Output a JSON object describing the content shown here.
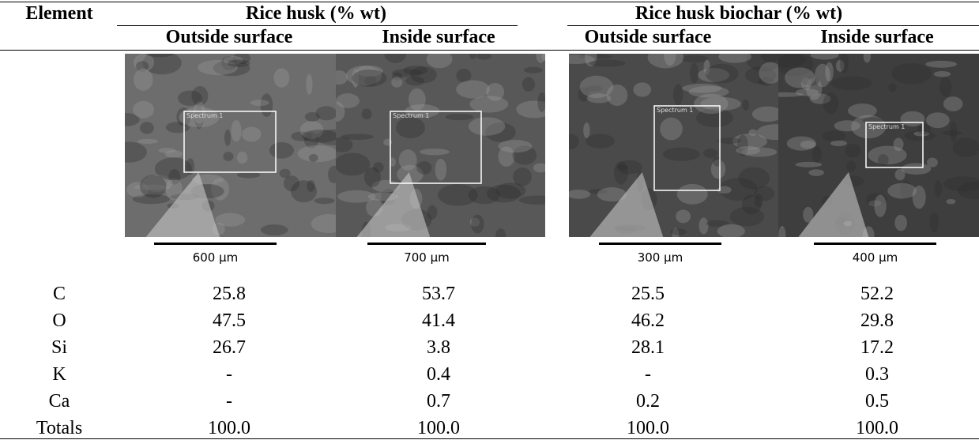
{
  "header": {
    "element": "Element",
    "groups": [
      {
        "title": "Rice husk (% wt)",
        "columns": [
          "Outside surface",
          "Inside surface"
        ]
      },
      {
        "title": "Rice husk biochar (% wt)",
        "columns": [
          "Outside surface",
          "Inside surface"
        ]
      }
    ]
  },
  "images": [
    {
      "label": "Spectrum 1",
      "scale": "600 µm"
    },
    {
      "label": "Spectrum 1",
      "scale": "700 µm"
    },
    {
      "label": "Spectrum 1",
      "scale": "300 µm"
    },
    {
      "label": "Spectrum 1",
      "scale": "400 µm"
    }
  ],
  "table": {
    "rows": [
      [
        "C",
        "25.8",
        "53.7",
        "25.5",
        "52.2"
      ],
      [
        "O",
        "47.5",
        "41.4",
        "46.2",
        "29.8"
      ],
      [
        "Si",
        "26.7",
        "3.8",
        "28.1",
        "17.2"
      ],
      [
        "K",
        "-",
        "0.4",
        "-",
        "0.3"
      ],
      [
        "Ca",
        "-",
        "0.7",
        "0.2",
        "0.5"
      ],
      [
        "Totals",
        "100.0",
        "100.0",
        "100.0",
        "100.0"
      ]
    ]
  }
}
